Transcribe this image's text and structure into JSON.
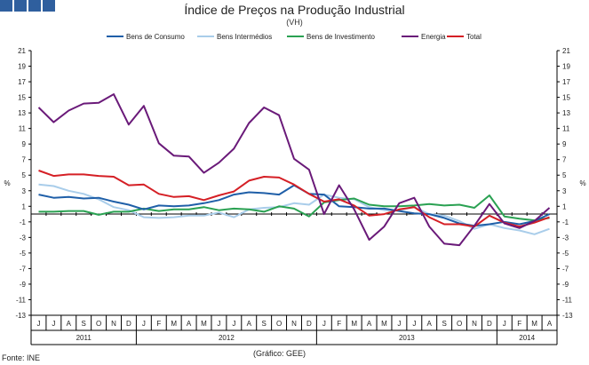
{
  "colors": {
    "bens_consumo": "#1f5fa8",
    "bens_intermedios": "#a9cdea",
    "bens_investimento": "#2aa152",
    "energia": "#6a1a79",
    "total": "#d51f25",
    "logo": "#2f5f9e",
    "axis": "#000000"
  },
  "footer": {
    "source": "Fonte: INE",
    "credit": "(Gráfico: GEE)"
  },
  "chart_data": {
    "type": "line",
    "title": "Índice de Preços na Produção Industrial",
    "subtitle": "(VH)",
    "ylabel_left": "%",
    "ylabel_right": "%",
    "ylim": [
      -13,
      21
    ],
    "yticks": [
      21,
      19,
      17,
      15,
      13,
      11,
      9,
      7,
      5,
      3,
      1,
      -1,
      -3,
      -5,
      -7,
      -9,
      -11,
      -13
    ],
    "x_month_labels": [
      "J",
      "J",
      "A",
      "S",
      "O",
      "N",
      "D",
      "J",
      "F",
      "M",
      "A",
      "M",
      "J",
      "J",
      "A",
      "S",
      "O",
      "N",
      "D",
      "J",
      "F",
      "M",
      "A",
      "M",
      "J",
      "J",
      "A",
      "S",
      "O",
      "N",
      "D",
      "J",
      "F",
      "M",
      "A"
    ],
    "year_groups": [
      {
        "label": "2011",
        "start": 0,
        "end": 6
      },
      {
        "label": "2012",
        "start": 7,
        "end": 18
      },
      {
        "label": "2013",
        "start": 19,
        "end": 30
      },
      {
        "label": "2014",
        "start": 31,
        "end": 34
      }
    ],
    "series": [
      {
        "name": "Bens de Consumo",
        "key": "bens_consumo",
        "values": [
          2.5,
          2.1,
          2.2,
          2.0,
          2.1,
          1.6,
          1.2,
          0.6,
          1.1,
          1.0,
          1.1,
          1.4,
          1.8,
          2.5,
          2.8,
          2.7,
          2.5,
          3.7,
          2.6,
          2.5,
          1.0,
          0.9,
          0.7,
          0.7,
          0.4,
          0.1,
          0.0,
          -0.5,
          -1.2,
          -1.5,
          -1.3,
          -1.0,
          -1.3,
          -0.9,
          0.0
        ]
      },
      {
        "name": "Bens Intermédios",
        "key": "bens_intermedios",
        "values": [
          3.8,
          3.6,
          3.0,
          2.6,
          1.9,
          0.9,
          0.5,
          -0.4,
          -0.5,
          -0.4,
          -0.2,
          -0.2,
          0.2,
          -0.4,
          0.6,
          0.8,
          0.9,
          1.4,
          1.2,
          2.5,
          2.1,
          1.9,
          0.9,
          0.5,
          0.5,
          0.9,
          0.0,
          -0.2,
          -0.9,
          -1.9,
          -1.3,
          -1.8,
          -2.1,
          -2.6,
          -1.9
        ]
      },
      {
        "name": "Bens de Investimento",
        "key": "bens_investimento",
        "values": [
          0.3,
          0.3,
          0.4,
          0.4,
          -0.1,
          0.3,
          0.3,
          0.7,
          0.4,
          0.6,
          0.6,
          0.9,
          0.5,
          0.7,
          0.6,
          0.3,
          1.0,
          0.7,
          -0.3,
          1.5,
          1.8,
          2.0,
          1.2,
          1.0,
          1.0,
          1.1,
          1.3,
          1.1,
          1.2,
          0.8,
          2.4,
          -0.3,
          -0.6,
          -0.8,
          -0.5
        ]
      },
      {
        "name": "Energia",
        "key": "energia",
        "values": [
          13.7,
          11.8,
          13.3,
          14.2,
          14.3,
          15.4,
          11.5,
          13.9,
          9.1,
          7.5,
          7.4,
          5.3,
          6.6,
          8.4,
          11.7,
          13.7,
          12.7,
          7.1,
          5.7,
          0.0,
          3.7,
          0.6,
          -3.3,
          -1.6,
          1.4,
          2.1,
          -1.6,
          -3.8,
          -4.0,
          -1.5,
          1.3,
          -1.2,
          -1.8,
          -0.9,
          0.8
        ]
      },
      {
        "name": "Total",
        "key": "total",
        "values": [
          5.6,
          4.9,
          5.1,
          5.1,
          4.9,
          4.8,
          3.7,
          3.8,
          2.6,
          2.2,
          2.3,
          1.8,
          2.4,
          2.9,
          4.3,
          4.8,
          4.7,
          3.8,
          2.6,
          1.6,
          1.9,
          1.1,
          -0.2,
          0.0,
          0.6,
          0.9,
          -0.4,
          -1.3,
          -1.3,
          -1.6,
          -0.2,
          -1.1,
          -1.6,
          -1.1,
          -0.4
        ]
      }
    ]
  }
}
